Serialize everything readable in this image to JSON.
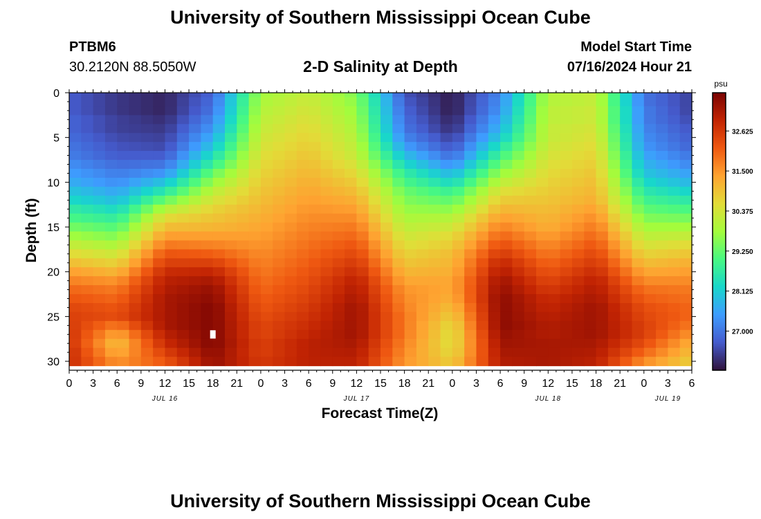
{
  "header": {
    "title": "University of Southern Mississippi Ocean Cube",
    "station_id": "PTBM6",
    "coordinates": "30.2120N  88.5050W",
    "subtitle": "2-D Salinity at Depth",
    "model_start_label": "Model Start Time",
    "model_start_value": "07/16/2024 Hour 21"
  },
  "footer": {
    "title": "University of Southern Mississippi Ocean Cube"
  },
  "chart_data": {
    "type": "heatmap",
    "title": "2-D Salinity at Depth",
    "xlabel": "Forecast Time(Z)",
    "ylabel": "Depth (ft)",
    "x_unit": "hours since 07/16 00Z",
    "xlim": [
      0,
      78
    ],
    "ylim": [
      0,
      31
    ],
    "y_ticks": [
      0,
      5,
      10,
      15,
      20,
      25,
      30
    ],
    "x_tick_hours": [
      0,
      3,
      6,
      9,
      12,
      15,
      18,
      21,
      24,
      27,
      30,
      33,
      36,
      39,
      42,
      45,
      48,
      51,
      54,
      57,
      60,
      63,
      66,
      69,
      72,
      75,
      78
    ],
    "x_tick_labels": [
      "0",
      "3",
      "6",
      "9",
      "12",
      "15",
      "18",
      "21",
      "0",
      "3",
      "6",
      "9",
      "12",
      "15",
      "18",
      "21",
      "0",
      "3",
      "6",
      "9",
      "12",
      "15",
      "18",
      "21",
      "0",
      "3",
      "6"
    ],
    "day_labels": [
      {
        "text": "JUL 16",
        "hour": 12
      },
      {
        "text": "JUL 17",
        "hour": 36
      },
      {
        "text": "JUL 18",
        "hour": 60
      },
      {
        "text": "JUL 19",
        "hour": 75
      }
    ],
    "colorbar": {
      "unit": "psu",
      "range": [
        25.9,
        33.7
      ],
      "ticks": [
        27.0,
        28.125,
        29.25,
        30.375,
        31.5,
        32.625
      ],
      "tick_labels": [
        "27.000",
        "28.125",
        "29.250",
        "30.375",
        "31.500",
        "32.625"
      ]
    },
    "missing_points": [
      {
        "hour": 18,
        "depth": 27
      }
    ],
    "grid": {
      "x_step_hours": 1.5,
      "depth_step_ft": 1,
      "depths": [
        0,
        1,
        2,
        3,
        4,
        5,
        6,
        7,
        8,
        9,
        10,
        11,
        12,
        13,
        14,
        15,
        16,
        17,
        18,
        19,
        20,
        21,
        22,
        23,
        24,
        25,
        26,
        27,
        28,
        29,
        30
      ],
      "profiles": [
        {
          "hour": 0,
          "salinity": [
            26.7,
            26.7,
            26.7,
            26.8,
            26.8,
            26.9,
            27.0,
            27.1,
            27.3,
            27.5,
            27.7,
            28.0,
            28.3,
            28.7,
            29.0,
            29.4,
            29.8,
            30.2,
            30.6,
            31.0,
            31.4,
            31.7,
            32.0,
            32.2,
            32.4,
            32.5,
            32.6,
            32.7,
            32.7,
            32.8,
            32.8
          ]
        },
        {
          "hour": 6,
          "salinity": [
            26.3,
            26.3,
            26.3,
            26.4,
            26.4,
            26.5,
            26.6,
            26.7,
            26.9,
            27.1,
            27.3,
            27.6,
            27.9,
            28.3,
            28.7,
            29.1,
            29.5,
            29.9,
            30.3,
            30.7,
            31.1,
            31.5,
            31.8,
            32.0,
            32.2,
            32.3,
            31.8,
            31.3,
            31.0,
            31.2,
            31.5
          ]
        },
        {
          "hour": 12,
          "salinity": [
            26.1,
            26.1,
            26.1,
            26.2,
            26.3,
            26.4,
            26.5,
            26.7,
            27.0,
            27.4,
            28.0,
            28.6,
            29.3,
            30.0,
            30.6,
            31.0,
            31.4,
            31.8,
            32.2,
            32.5,
            32.8,
            33.0,
            33.1,
            33.2,
            33.2,
            33.2,
            33.2,
            33.0,
            32.8,
            32.5,
            32.2
          ]
        },
        {
          "hour": 18,
          "salinity": [
            26.8,
            26.9,
            27.0,
            27.2,
            27.4,
            27.7,
            28.0,
            28.4,
            28.8,
            29.3,
            29.7,
            30.1,
            30.4,
            30.7,
            30.9,
            31.1,
            31.4,
            31.7,
            32.1,
            32.5,
            32.9,
            33.2,
            33.4,
            33.5,
            33.6,
            33.6,
            33.6,
            33.6,
            33.6,
            33.5,
            33.4
          ]
        },
        {
          "hour": 24,
          "salinity": [
            29.8,
            29.9,
            30.0,
            30.1,
            30.2,
            30.3,
            30.4,
            30.5,
            30.6,
            30.7,
            30.8,
            30.9,
            31.0,
            31.1,
            31.2,
            31.3,
            31.4,
            31.5,
            31.6,
            31.7,
            31.8,
            31.9,
            32.0,
            32.1,
            32.2,
            32.3,
            32.4,
            32.4,
            32.5,
            32.5,
            32.6
          ]
        },
        {
          "hour": 30,
          "salinity": [
            30.2,
            30.3,
            30.4,
            30.5,
            30.6,
            30.7,
            30.8,
            30.9,
            31.0,
            31.1,
            31.2,
            31.3,
            31.4,
            31.5,
            31.6,
            31.7,
            31.8,
            31.9,
            32.0,
            32.1,
            32.2,
            32.3,
            32.4,
            32.5,
            32.6,
            32.7,
            32.8,
            32.9,
            33.0,
            33.0,
            33.0
          ]
        },
        {
          "hour": 36,
          "salinity": [
            29.5,
            29.6,
            29.7,
            29.8,
            29.9,
            30.0,
            30.1,
            30.2,
            30.4,
            30.6,
            30.8,
            31.0,
            31.2,
            31.4,
            31.6,
            31.8,
            32.0,
            32.2,
            32.4,
            32.6,
            32.8,
            33.0,
            33.1,
            33.2,
            33.3,
            33.3,
            33.3,
            33.3,
            33.2,
            33.1,
            33.0
          ]
        },
        {
          "hour": 42,
          "salinity": [
            26.6,
            26.7,
            26.8,
            26.9,
            27.0,
            27.2,
            27.5,
            27.9,
            28.3,
            28.7,
            29.0,
            29.3,
            29.5,
            29.7,
            29.9,
            30.1,
            30.3,
            30.5,
            30.7,
            30.9,
            31.1,
            31.3,
            31.5,
            31.6,
            31.7,
            31.8,
            31.8,
            31.8,
            31.7,
            31.6,
            31.5
          ]
        },
        {
          "hour": 48,
          "salinity": [
            26.0,
            26.0,
            26.0,
            26.1,
            26.2,
            26.4,
            26.6,
            26.9,
            27.3,
            27.8,
            28.3,
            28.8,
            29.2,
            29.6,
            30.0,
            30.3,
            30.6,
            30.8,
            31.0,
            31.1,
            31.2,
            31.3,
            31.3,
            31.2,
            31.0,
            30.8,
            30.6,
            30.5,
            30.5,
            30.6,
            30.8
          ]
        },
        {
          "hour": 54,
          "salinity": [
            27.2,
            27.3,
            27.4,
            27.6,
            27.8,
            28.1,
            28.5,
            28.9,
            29.3,
            29.7,
            30.1,
            30.5,
            30.8,
            31.1,
            31.4,
            31.7,
            32.0,
            32.3,
            32.6,
            32.9,
            33.1,
            33.3,
            33.4,
            33.5,
            33.5,
            33.5,
            33.5,
            33.4,
            33.3,
            33.2,
            33.1
          ]
        },
        {
          "hour": 60,
          "salinity": [
            30.0,
            30.0,
            30.1,
            30.1,
            30.2,
            30.2,
            30.3,
            30.4,
            30.5,
            30.6,
            30.7,
            30.8,
            30.9,
            31.0,
            31.1,
            31.2,
            31.4,
            31.6,
            31.8,
            32.0,
            32.2,
            32.4,
            32.6,
            32.8,
            32.9,
            33.0,
            33.1,
            33.1,
            33.2,
            33.2,
            33.2
          ]
        },
        {
          "hour": 66,
          "salinity": [
            30.2,
            30.2,
            30.3,
            30.3,
            30.4,
            30.5,
            30.6,
            30.7,
            30.8,
            30.9,
            31.0,
            31.1,
            31.2,
            31.4,
            31.6,
            31.8,
            32.0,
            32.2,
            32.4,
            32.6,
            32.8,
            33.0,
            33.1,
            33.2,
            33.3,
            33.3,
            33.3,
            33.3,
            33.2,
            33.1,
            33.0
          ]
        },
        {
          "hour": 72,
          "salinity": [
            27.0,
            27.0,
            27.1,
            27.1,
            27.2,
            27.3,
            27.4,
            27.6,
            27.8,
            28.0,
            28.3,
            28.6,
            28.9,
            29.2,
            29.5,
            29.8,
            30.1,
            30.4,
            30.7,
            31.0,
            31.3,
            31.6,
            31.9,
            32.1,
            32.3,
            32.4,
            32.5,
            32.5,
            32.3,
            32.0,
            31.6
          ]
        },
        {
          "hour": 78,
          "salinity": [
            26.4,
            26.4,
            26.4,
            26.5,
            26.6,
            26.7,
            26.8,
            27.0,
            27.2,
            27.5,
            27.8,
            28.2,
            28.6,
            29.0,
            29.4,
            29.8,
            30.2,
            30.6,
            30.9,
            31.2,
            31.4,
            31.6,
            31.8,
            31.9,
            32.0,
            32.0,
            31.8,
            31.5,
            31.2,
            31.0,
            30.8
          ]
        }
      ]
    }
  }
}
